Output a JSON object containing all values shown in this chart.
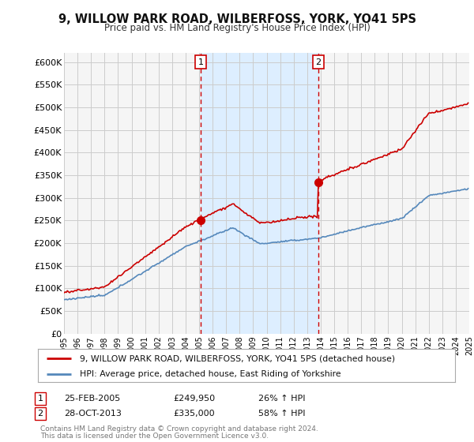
{
  "title": "9, WILLOW PARK ROAD, WILBERFOSS, YORK, YO41 5PS",
  "subtitle": "Price paid vs. HM Land Registry's House Price Index (HPI)",
  "ylabel_ticks": [
    "£0",
    "£50K",
    "£100K",
    "£150K",
    "£200K",
    "£250K",
    "£300K",
    "£350K",
    "£400K",
    "£450K",
    "£500K",
    "£550K",
    "£600K"
  ],
  "ytick_values": [
    0,
    50000,
    100000,
    150000,
    200000,
    250000,
    300000,
    350000,
    400000,
    450000,
    500000,
    550000,
    600000
  ],
  "x_start_year": 1995,
  "x_end_year": 2025,
  "sale1_year": 2005.12,
  "sale1_val": 249950,
  "sale2_year": 2013.83,
  "sale2_val": 335000,
  "legend_line1": "9, WILLOW PARK ROAD, WILBERFOSS, YORK, YO41 5PS (detached house)",
  "legend_line2": "HPI: Average price, detached house, East Riding of Yorkshire",
  "footer1": "Contains HM Land Registry data © Crown copyright and database right 2024.",
  "footer2": "This data is licensed under the Open Government Licence v3.0.",
  "color_red": "#cc0000",
  "color_blue": "#5588bb",
  "shaded_color": "#ddeeff",
  "background_color": "#ffffff",
  "plot_bg_color": "#f5f5f5",
  "grid_color": "#cccccc",
  "vline_color": "#cc0000"
}
